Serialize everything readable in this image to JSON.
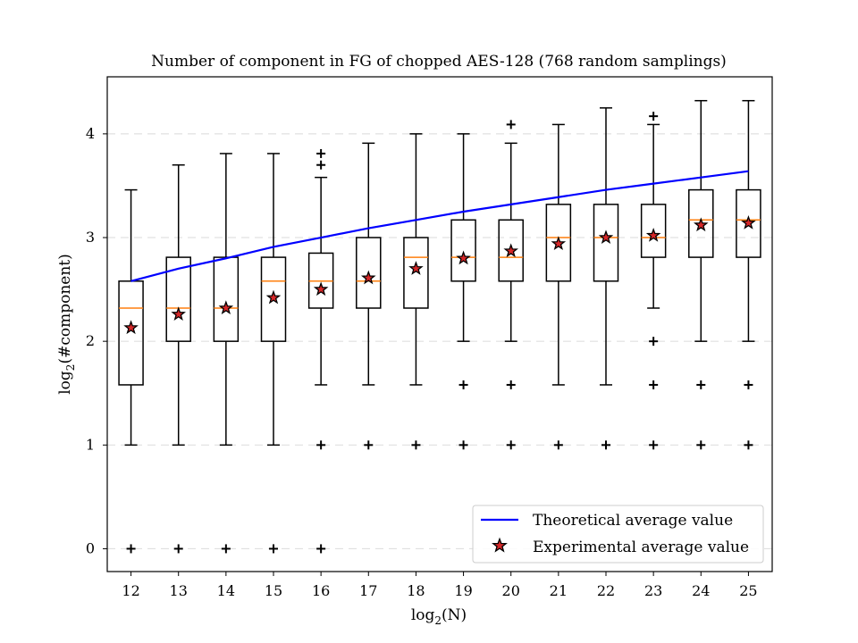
{
  "chart_data": {
    "type": "boxplot",
    "title": "Number of component in FG of chopped AES-128 (768 random samplings)",
    "xlabel": {
      "main": "log",
      "sub": "2",
      "arg": "(N)"
    },
    "ylabel": {
      "main": "log",
      "sub": "2",
      "arg": "(#component)"
    },
    "xlim": [
      11.5,
      25.5
    ],
    "ylim": [
      -0.22,
      4.55
    ],
    "y_ticks": [
      0,
      1,
      2,
      3,
      4
    ],
    "grid": "y-dashed",
    "legend_position": "lower-right",
    "colors": {
      "box": "#000000",
      "median": "#ff7f0e",
      "theory": "#0000ff",
      "star_fill": "#d62728",
      "grid": "#e0e0e0"
    },
    "series": [
      {
        "name": "Theoretical average value",
        "kind": "line",
        "x": [
          12,
          13,
          14,
          15,
          16,
          17,
          18,
          19,
          20,
          21,
          22,
          23,
          24,
          25
        ],
        "values": [
          2.58,
          2.7,
          2.8,
          2.91,
          3.0,
          3.09,
          3.17,
          3.25,
          3.32,
          3.39,
          3.46,
          3.52,
          3.58,
          3.64
        ]
      },
      {
        "name": "Experimental average value",
        "kind": "marker",
        "x": [
          12,
          13,
          14,
          15,
          16,
          17,
          18,
          19,
          20,
          21,
          22,
          23,
          24,
          25
        ],
        "values": [
          2.13,
          2.26,
          2.32,
          2.42,
          2.5,
          2.61,
          2.7,
          2.8,
          2.87,
          2.94,
          3.0,
          3.02,
          3.12,
          3.14
        ]
      }
    ],
    "boxes": [
      {
        "x": 12,
        "whislo": 1.0,
        "q1": 1.58,
        "med": 2.32,
        "q3": 2.58,
        "whishi": 3.46,
        "fliers": [
          0
        ]
      },
      {
        "x": 13,
        "whislo": 1.0,
        "q1": 2.0,
        "med": 2.32,
        "q3": 2.81,
        "whishi": 3.7,
        "fliers": [
          0
        ]
      },
      {
        "x": 14,
        "whislo": 1.0,
        "q1": 2.0,
        "med": 2.32,
        "q3": 2.81,
        "whishi": 3.81,
        "fliers": [
          0
        ]
      },
      {
        "x": 15,
        "whislo": 1.0,
        "q1": 2.0,
        "med": 2.58,
        "q3": 2.81,
        "whishi": 3.81,
        "fliers": [
          0
        ]
      },
      {
        "x": 16,
        "whislo": 1.58,
        "q1": 2.32,
        "med": 2.58,
        "q3": 2.85,
        "whishi": 3.58,
        "fliers": [
          0,
          1,
          3.7,
          3.81
        ]
      },
      {
        "x": 17,
        "whislo": 1.58,
        "q1": 2.32,
        "med": 2.58,
        "q3": 3.0,
        "whishi": 3.91,
        "fliers": [
          1
        ]
      },
      {
        "x": 18,
        "whislo": 1.58,
        "q1": 2.32,
        "med": 2.81,
        "q3": 3.0,
        "whishi": 4.0,
        "fliers": [
          1
        ]
      },
      {
        "x": 19,
        "whislo": 2.0,
        "q1": 2.58,
        "med": 2.81,
        "q3": 3.17,
        "whishi": 4.0,
        "fliers": [
          1,
          1.58
        ]
      },
      {
        "x": 20,
        "whislo": 2.0,
        "q1": 2.58,
        "med": 2.81,
        "q3": 3.17,
        "whishi": 3.91,
        "fliers": [
          1,
          1.58,
          4.09
        ]
      },
      {
        "x": 21,
        "whislo": 1.58,
        "q1": 2.58,
        "med": 3.0,
        "q3": 3.32,
        "whishi": 4.09,
        "fliers": [
          1
        ]
      },
      {
        "x": 22,
        "whislo": 1.58,
        "q1": 2.58,
        "med": 3.0,
        "q3": 3.32,
        "whishi": 4.25,
        "fliers": [
          1
        ]
      },
      {
        "x": 23,
        "whislo": 2.32,
        "q1": 2.81,
        "med": 3.0,
        "q3": 3.32,
        "whishi": 4.09,
        "fliers": [
          1,
          1.58,
          2.0,
          4.17
        ]
      },
      {
        "x": 24,
        "whislo": 2.0,
        "q1": 2.81,
        "med": 3.17,
        "q3": 3.46,
        "whishi": 4.32,
        "fliers": [
          1,
          1.58
        ]
      },
      {
        "x": 25,
        "whislo": 2.0,
        "q1": 2.81,
        "med": 3.17,
        "q3": 3.46,
        "whishi": 4.32,
        "fliers": [
          1,
          1.58
        ]
      }
    ]
  }
}
